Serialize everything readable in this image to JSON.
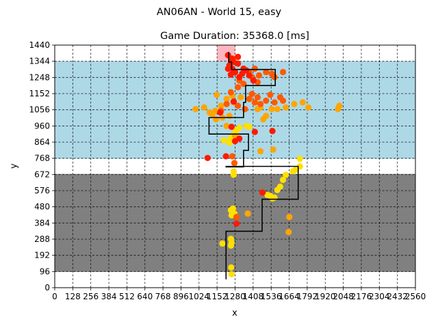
{
  "figure": {
    "suptitle": "AN06AN - World 15, easy"
  },
  "chart_data": {
    "type": "scatter",
    "title": "Game Duration: 35368.0 [ms]",
    "xlabel": "x",
    "ylabel": "y",
    "xlim": [
      0,
      2560
    ],
    "ylim": [
      0,
      1440
    ],
    "grid": true,
    "grid_style": "dashed",
    "xticks": [
      0,
      128,
      256,
      384,
      512,
      640,
      768,
      896,
      1024,
      1152,
      1280,
      1408,
      1536,
      1664,
      1792,
      1920,
      2048,
      2176,
      2304,
      2432,
      2560
    ],
    "xtick_labels": [
      "0",
      "128",
      "256",
      "384",
      "512",
      "640",
      "768",
      "896",
      "1024",
      "1152",
      "1280",
      "1408",
      "1536",
      "1664",
      "1792",
      "1920",
      "2048",
      "2176",
      "2304",
      "2432",
      "2560"
    ],
    "yticks": [
      0,
      96,
      192,
      288,
      384,
      480,
      576,
      672,
      768,
      864,
      960,
      1056,
      1152,
      1248,
      1344,
      1440
    ],
    "ytick_labels": [
      "0",
      "96",
      "192",
      "288",
      "384",
      "480",
      "576",
      "672",
      "768",
      "864",
      "960",
      "1056",
      "1152",
      "1248",
      "1344",
      "1440"
    ],
    "regions": [
      {
        "name": "lower-gray-zone",
        "x": [
          0,
          2560
        ],
        "y": [
          94,
          675
        ],
        "color": "#808080"
      },
      {
        "name": "upper-blue-zone",
        "x": [
          0,
          2560
        ],
        "y": [
          765,
          1345
        ],
        "color": "#add8e6"
      },
      {
        "name": "goal-pink-zone",
        "x": [
          1152,
          1280
        ],
        "y": [
          1345,
          1440
        ],
        "color": "#ffb6c1"
      }
    ],
    "path": {
      "color": "#000000",
      "points": [
        [
          1216,
          50
        ],
        [
          1216,
          335
        ],
        [
          1472,
          335
        ],
        [
          1472,
          525
        ],
        [
          1728,
          525
        ],
        [
          1728,
          720
        ],
        [
          1216,
          720
        ],
        [
          1216,
          717
        ],
        [
          1340,
          717
        ],
        [
          1340,
          815
        ],
        [
          1375,
          815
        ],
        [
          1375,
          912
        ],
        [
          1095,
          912
        ],
        [
          1095,
          1010
        ],
        [
          1340,
          1010
        ],
        [
          1340,
          1100
        ],
        [
          1355,
          1100
        ],
        [
          1355,
          1200
        ],
        [
          1565,
          1200
        ],
        [
          1565,
          1295
        ],
        [
          1255,
          1295
        ],
        [
          1255,
          1340
        ],
        [
          1235,
          1340
        ],
        [
          1235,
          1400
        ]
      ]
    },
    "series": [
      {
        "color": "#ffe000",
        "points": [
          [
            1255,
            80
          ],
          [
            1252,
            120
          ],
          [
            1250,
            250
          ],
          [
            1255,
            270
          ],
          [
            1250,
            290
          ],
          [
            1190,
            262
          ],
          [
            1255,
            430
          ],
          [
            1265,
            445
          ],
          [
            1250,
            460
          ],
          [
            1265,
            470
          ],
          [
            1275,
            440
          ],
          [
            1270,
            670
          ],
          [
            1270,
            690
          ],
          [
            1510,
            550
          ],
          [
            1530,
            545
          ],
          [
            1545,
            530
          ],
          [
            1560,
            535
          ],
          [
            1580,
            580
          ],
          [
            1600,
            600
          ],
          [
            1620,
            640
          ],
          [
            1640,
            670
          ],
          [
            1690,
            690
          ],
          [
            1710,
            700
          ],
          [
            1740,
            720
          ],
          [
            1740,
            765
          ],
          [
            1245,
            880
          ],
          [
            1260,
            900
          ],
          [
            1280,
            920
          ],
          [
            1290,
            935
          ],
          [
            1310,
            950
          ],
          [
            1360,
            960
          ],
          [
            1380,
            955
          ],
          [
            1200,
            875
          ],
          [
            1240,
            860
          ]
        ]
      },
      {
        "color": "#ffa500",
        "points": [
          [
            1660,
            330
          ],
          [
            1665,
            420
          ],
          [
            1370,
            440
          ],
          [
            1145,
            1000
          ],
          [
            1190,
            1010
          ],
          [
            1240,
            1020
          ],
          [
            1060,
            1070
          ],
          [
            1000,
            1060
          ],
          [
            1100,
            1040
          ],
          [
            1140,
            1050
          ],
          [
            1180,
            1080
          ],
          [
            1220,
            1120
          ],
          [
            1270,
            1100
          ],
          [
            1260,
            1140
          ],
          [
            1320,
            1130
          ],
          [
            1150,
            1145
          ],
          [
            1480,
            1000
          ],
          [
            1500,
            1020
          ],
          [
            1440,
            1060
          ],
          [
            1460,
            1070
          ],
          [
            1540,
            1060
          ],
          [
            1580,
            1060
          ],
          [
            1640,
            1070
          ],
          [
            1700,
            1090
          ],
          [
            1760,
            1100
          ],
          [
            1800,
            1070
          ],
          [
            2020,
            1080
          ],
          [
            2010,
            1060
          ],
          [
            1550,
            820
          ],
          [
            1460,
            810
          ],
          [
            1220,
            960
          ],
          [
            1280,
            900
          ],
          [
            1120,
            1030
          ]
        ]
      },
      {
        "color": "#ff5a00",
        "points": [
          [
            1290,
            420
          ],
          [
            1275,
            740
          ],
          [
            1260,
            780
          ],
          [
            1220,
            1090
          ],
          [
            1180,
            1050
          ],
          [
            1300,
            1080
          ],
          [
            1350,
            1060
          ],
          [
            1380,
            1120
          ],
          [
            1400,
            1150
          ],
          [
            1420,
            1100
          ],
          [
            1440,
            1130
          ],
          [
            1460,
            1090
          ],
          [
            1500,
            1110
          ],
          [
            1560,
            1100
          ],
          [
            1600,
            1130
          ],
          [
            1620,
            1110
          ],
          [
            1300,
            1190
          ],
          [
            1340,
            1210
          ],
          [
            1310,
            1230
          ],
          [
            1400,
            1250
          ],
          [
            1450,
            1260
          ],
          [
            1500,
            1280
          ],
          [
            1540,
            1270
          ],
          [
            1560,
            1250
          ],
          [
            1620,
            1280
          ],
          [
            1440,
            1220
          ],
          [
            1380,
            1280
          ],
          [
            1420,
            1300
          ],
          [
            1250,
            1160
          ],
          [
            1530,
            1145
          ]
        ]
      },
      {
        "color": "#ff1a00",
        "points": [
          [
            1290,
            380
          ],
          [
            1475,
            565
          ],
          [
            1085,
            770
          ],
          [
            1215,
            780
          ],
          [
            1255,
            955
          ],
          [
            1310,
            885
          ],
          [
            1420,
            925
          ],
          [
            1545,
            930
          ],
          [
            1175,
            1040
          ],
          [
            1260,
            1300
          ],
          [
            1240,
            1320
          ],
          [
            1270,
            1340
          ],
          [
            1300,
            1330
          ],
          [
            1260,
            1360
          ],
          [
            1230,
            1380
          ],
          [
            1300,
            1370
          ],
          [
            1330,
            1270
          ],
          [
            1360,
            1290
          ],
          [
            1380,
            1260
          ],
          [
            1340,
            1300
          ],
          [
            1230,
            1300
          ],
          [
            1280,
            1280
          ],
          [
            1310,
            1250
          ],
          [
            1250,
            1265
          ],
          [
            1255,
            1340
          ],
          [
            1410,
            1230
          ],
          [
            1270,
            1105
          ],
          [
            1280,
            870
          ]
        ]
      }
    ]
  }
}
